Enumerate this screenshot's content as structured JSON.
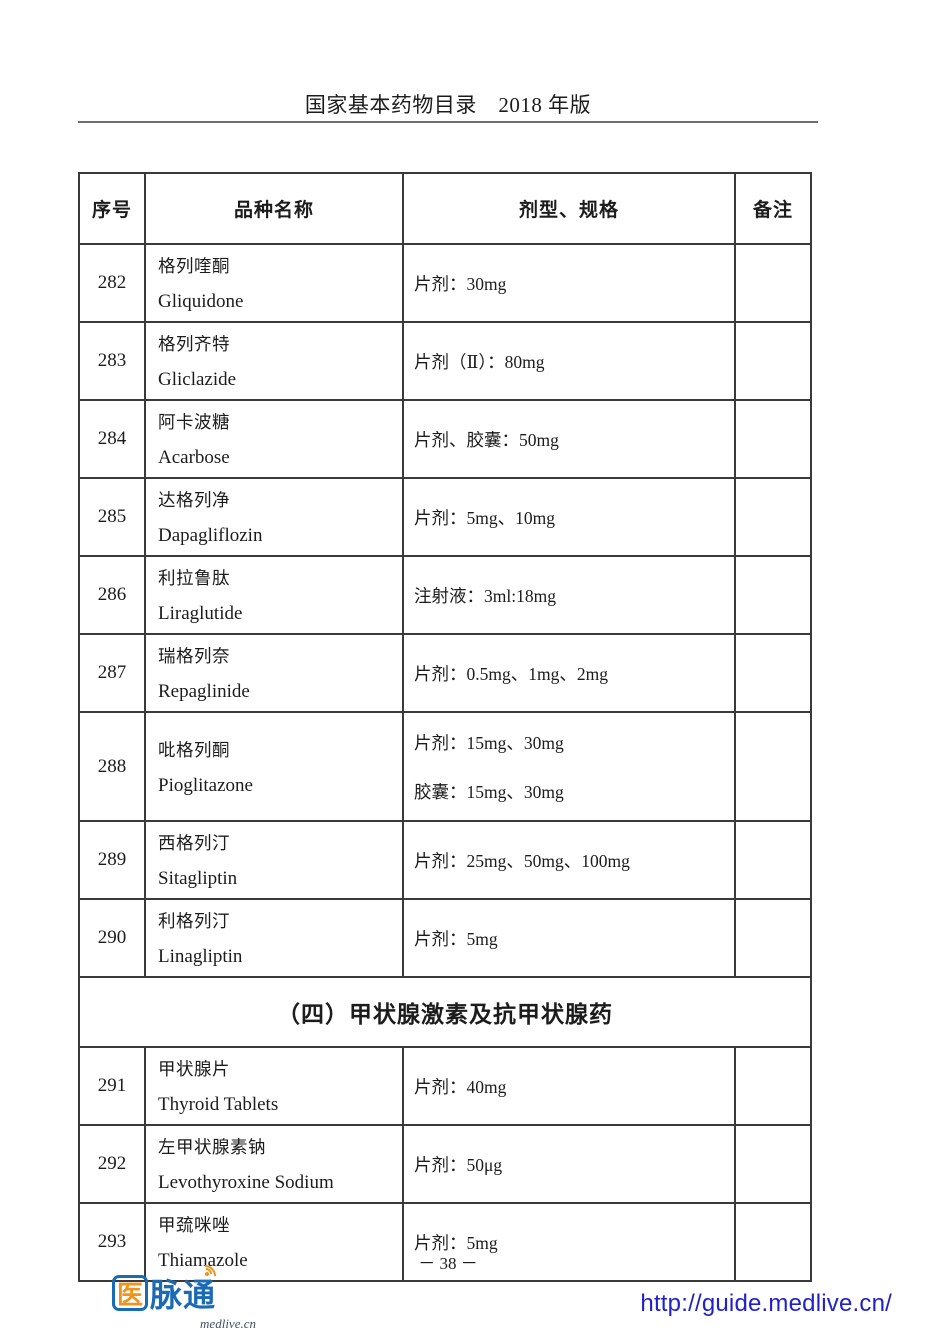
{
  "page": {
    "header_title": "国家基本药物目录　2018 年版",
    "page_number": "－ 38 －",
    "footer_url": "http://guide.medlive.cn/"
  },
  "logo": {
    "char_yi": "医",
    "chars_maitong": "脉通",
    "subtext": "medlive.cn"
  },
  "table": {
    "columns": [
      "序号",
      "品种名称",
      "剂型、规格",
      "备注"
    ],
    "rows": [
      {
        "no": "282",
        "name_cn": "格列喹酮",
        "name_en": "Gliquidone",
        "specs": [
          "片剂：30mg"
        ],
        "note": ""
      },
      {
        "no": "283",
        "name_cn": "格列齐特",
        "name_en": "Gliclazide",
        "specs": [
          "片剂（Ⅱ）：80mg"
        ],
        "note": ""
      },
      {
        "no": "284",
        "name_cn": "阿卡波糖",
        "name_en": "Acarbose",
        "specs": [
          "片剂、胶囊：50mg"
        ],
        "note": ""
      },
      {
        "no": "285",
        "name_cn": "达格列净",
        "name_en": "Dapagliflozin",
        "specs": [
          "片剂：5mg、10mg"
        ],
        "note": ""
      },
      {
        "no": "286",
        "name_cn": "利拉鲁肽",
        "name_en": "Liraglutide",
        "specs": [
          "注射液：3ml:18mg"
        ],
        "note": ""
      },
      {
        "no": "287",
        "name_cn": "瑞格列奈",
        "name_en": "Repaglinide",
        "specs": [
          "片剂：0.5mg、1mg、2mg"
        ],
        "note": ""
      },
      {
        "no": "288",
        "name_cn": "吡格列酮",
        "name_en": "Pioglitazone",
        "specs": [
          "片剂：15mg、30mg",
          "胶囊：15mg、30mg"
        ],
        "note": ""
      },
      {
        "no": "289",
        "name_cn": "西格列汀",
        "name_en": "Sitagliptin",
        "specs": [
          "片剂：25mg、50mg、100mg"
        ],
        "note": ""
      },
      {
        "no": "290",
        "name_cn": "利格列汀",
        "name_en": "Linagliptin",
        "specs": [
          "片剂：5mg"
        ],
        "note": ""
      },
      {
        "section": "（四）甲状腺激素及抗甲状腺药"
      },
      {
        "no": "291",
        "name_cn": "甲状腺片",
        "name_en": "Thyroid Tablets",
        "specs": [
          "片剂：40mg"
        ],
        "note": ""
      },
      {
        "no": "292",
        "name_cn": "左甲状腺素钠",
        "name_en": "Levothyroxine Sodium",
        "specs": [
          "片剂：50μg"
        ],
        "note": ""
      },
      {
        "no": "293",
        "name_cn": "甲巯咪唑",
        "name_en": "Thiamazole",
        "specs": [
          "片剂：5mg"
        ],
        "note": ""
      }
    ]
  },
  "colors": {
    "text": "#1c1c1c",
    "table_border": "#3a3a3a",
    "title_rule": "#6e6e6e",
    "link_blue": "#2121cc",
    "logo_blue": "#1a6ab5",
    "logo_orange": "#f0941d"
  }
}
